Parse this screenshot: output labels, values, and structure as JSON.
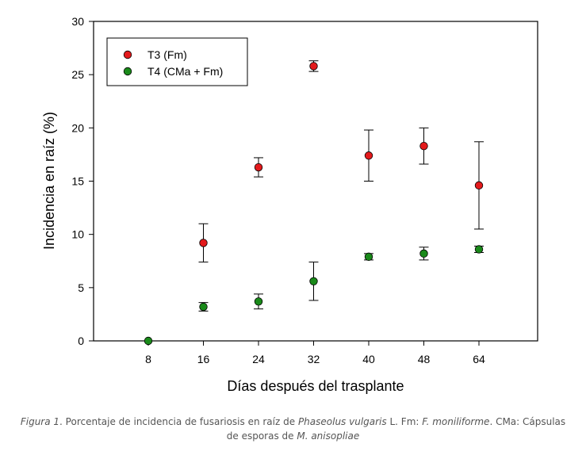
{
  "chart_data": {
    "type": "scatter",
    "categories": [
      "8",
      "16",
      "24",
      "32",
      "40",
      "48",
      "64"
    ],
    "xlabel": "Días después del trasplante",
    "ylabel": "Incidencia en raíz (%)",
    "ylim": [
      0,
      30
    ],
    "yticks": [
      "0",
      "5",
      "10",
      "15",
      "20",
      "25",
      "30"
    ],
    "grid": false,
    "legend_position": "top-left",
    "series": [
      {
        "name": "T3 (Fm)",
        "color": "#e31a1c",
        "values": [
          null,
          9.2,
          16.3,
          25.8,
          17.4,
          18.3,
          14.6
        ],
        "error": [
          null,
          1.8,
          0.9,
          0.5,
          2.4,
          1.7,
          4.1
        ]
      },
      {
        "name": "T4 (CMa + Fm)",
        "color": "#1a8a1a",
        "values": [
          0,
          3.2,
          3.7,
          5.6,
          7.9,
          8.2,
          8.6
        ],
        "error": [
          null,
          0.4,
          0.7,
          1.8,
          0.3,
          0.6,
          0.3
        ]
      }
    ]
  },
  "caption": {
    "figure_label": "Figura 1",
    "text_1": ". Porcentaje de incidencia de fusariosis en raíz de ",
    "species": "Phaseolus vulgaris",
    "text_2": " L. Fm: ",
    "pathogen": "F. moniliforme",
    "text_3": ". CMa: Cápsulas de esporas de ",
    "agent": "M. anisopliae"
  }
}
